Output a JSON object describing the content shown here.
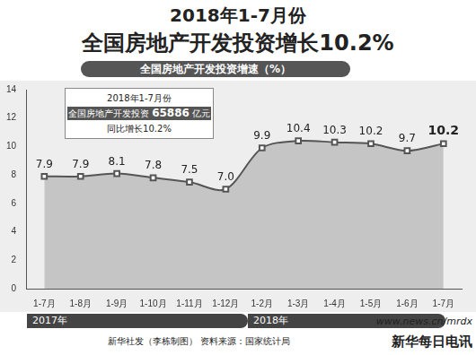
{
  "chart_data": {
    "type": "line",
    "title": "2018年1-7月份",
    "subtitle": "全国房地产开发投资增长10.2%",
    "y_label": "全国房地产开发投资增速（%）",
    "categories": [
      "1-7月",
      "1-8月",
      "1-9月",
      "1-10月",
      "1-11月",
      "1-12月",
      "1-2月",
      "1-3月",
      "1-4月",
      "1-5月",
      "1-6月",
      "1-7月"
    ],
    "values": [
      7.9,
      7.9,
      8.1,
      7.8,
      7.5,
      7.0,
      9.9,
      10.4,
      10.3,
      10.2,
      9.7,
      10.2
    ],
    "value_labels": [
      "7.9",
      "7.9",
      "8.1",
      "7.8",
      "7.5",
      "7.0",
      "9.9",
      "10.4",
      "10.3",
      "10.2",
      "9.7",
      "10.2"
    ],
    "data_labels": true,
    "color": "#555555",
    "marker": "square",
    "ylim": [
      0,
      14
    ],
    "yticks": [
      0,
      2,
      4,
      6,
      8,
      10,
      12,
      14
    ],
    "grid": false,
    "year_labels": [
      "2017年",
      "2018年"
    ],
    "annotation": {
      "title": "2018年1-7月份",
      "label": "全国房地产开发投资",
      "value": 65886,
      "unit": "亿元",
      "note": "同比增长10.2%"
    },
    "credit": "新华社发（李栋制图）",
    "source": "资料来源：国家统计局",
    "url": "www.news.cn/mrdx",
    "brand": "新华每日电讯"
  }
}
